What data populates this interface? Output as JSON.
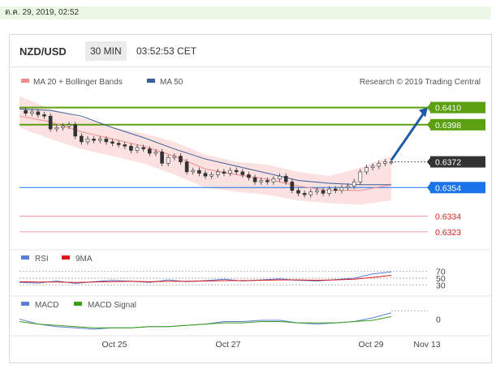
{
  "date_stamp": "ต.ค. 29, 2019, 02:52",
  "header": {
    "pair": "NZD/USD",
    "interval": "30 MIN",
    "clock": "03:52:53 CET"
  },
  "colors": {
    "resistance": "#5aa010",
    "support": "#1a73e8",
    "price_line": "#1e5aa8",
    "ma20": "#f08c8c",
    "ma50": "#3a5f9a",
    "bollinger_fill": "#fbd9d9",
    "rsi": "#5b7fd6",
    "rsi_ma": "#d81a1a",
    "macd": "#5b7fd6",
    "macd_signal": "#3aa018",
    "current_price_box": "#333333"
  },
  "chart_data": [
    {
      "type": "line",
      "panel": "price",
      "legend": [
        "MA 20 + Bollinger Bands",
        "MA 50"
      ],
      "research_credit": "Research © 2019 Trading Central",
      "x_ticks": [
        "Oct 25",
        "Oct 27",
        "Oct 29",
        "Nov 13"
      ],
      "ylim": [
        0.6315,
        0.642
      ],
      "series": [
        {
          "name": "NZD/USD",
          "x": [
            0,
            2,
            4,
            6,
            8,
            10,
            12,
            14,
            16,
            18,
            20,
            22,
            24,
            26,
            28,
            30,
            32,
            34,
            36,
            38,
            40,
            42,
            44,
            46,
            48,
            50,
            52,
            54,
            56,
            58,
            60,
            62,
            64,
            66,
            68,
            70,
            72,
            74,
            76,
            78,
            80,
            82,
            84,
            86,
            88,
            90,
            92,
            94,
            96,
            98,
            100,
            102,
            104,
            106,
            108,
            110,
            112,
            114,
            116,
            118,
            120
          ],
          "values": [
            0.6408,
            0.6406,
            0.6407,
            0.6405,
            0.6404,
            0.6395,
            0.6396,
            0.6397,
            0.6398,
            0.639,
            0.6386,
            0.6388,
            0.6387,
            0.6388,
            0.6386,
            0.6385,
            0.6384,
            0.6383,
            0.638,
            0.6382,
            0.6381,
            0.6378,
            0.6379,
            0.6371,
            0.6375,
            0.6376,
            0.6372,
            0.6365,
            0.6366,
            0.6364,
            0.6362,
            0.6363,
            0.6365,
            0.6364,
            0.6366,
            0.6365,
            0.6363,
            0.6361,
            0.6358,
            0.6359,
            0.6358,
            0.636,
            0.6362,
            0.6358,
            0.6352,
            0.635,
            0.6349,
            0.6351,
            0.6352,
            0.635,
            0.6353,
            0.6352,
            0.6354,
            0.6355,
            0.6358,
            0.6365,
            0.6368,
            0.6369,
            0.6371,
            0.6372,
            0.6372
          ]
        },
        {
          "name": "MA 20",
          "x": [
            0,
            10,
            20,
            30,
            40,
            50,
            60,
            70,
            80,
            90,
            100,
            110,
            120
          ],
          "values": [
            0.6404,
            0.64,
            0.6393,
            0.6388,
            0.6383,
            0.6376,
            0.6367,
            0.6363,
            0.636,
            0.6355,
            0.6352,
            0.6352,
            0.6356
          ]
        },
        {
          "name": "MA 50",
          "x": [
            0,
            10,
            20,
            30,
            40,
            50,
            60,
            70,
            80,
            90,
            100,
            110,
            120
          ],
          "values": [
            0.6409,
            0.6408,
            0.6404,
            0.6396,
            0.6389,
            0.6381,
            0.6374,
            0.6369,
            0.6364,
            0.6359,
            0.6357,
            0.6356,
            0.6356
          ]
        }
      ],
      "bollinger_upper": [
        0.6418,
        0.6409,
        0.6403,
        0.6396,
        0.6392,
        0.6386,
        0.6377,
        0.6372,
        0.637,
        0.6365,
        0.6362,
        0.6368,
        0.6376
      ],
      "bollinger_lower": [
        0.6396,
        0.6388,
        0.6381,
        0.6376,
        0.6371,
        0.6363,
        0.6354,
        0.6351,
        0.6349,
        0.6345,
        0.6343,
        0.6342,
        0.6345
      ],
      "levels": [
        {
          "value": 0.641,
          "label": "0.6410",
          "kind": "resistance"
        },
        {
          "value": 0.6398,
          "label": "0.6398",
          "kind": "resistance"
        },
        {
          "value": 0.6372,
          "label": "0.6372",
          "kind": "current"
        },
        {
          "value": 0.6354,
          "label": "0.6354",
          "kind": "pivot"
        },
        {
          "value": 0.6334,
          "label": "0.6334",
          "kind": "support"
        },
        {
          "value": 0.6323,
          "label": "0.6323",
          "kind": "support"
        }
      ],
      "projection": {
        "from_x": 120,
        "from_value": 0.6372,
        "to_x": 125,
        "to_value": 0.641
      }
    },
    {
      "type": "line",
      "panel": "rsi",
      "legend": [
        "RSI",
        "9MA"
      ],
      "y_ticks": [
        70,
        50,
        30
      ],
      "ylim": [
        20,
        80
      ],
      "series": [
        {
          "name": "RSI",
          "x": [
            0,
            6,
            12,
            18,
            24,
            30,
            36,
            42,
            48,
            54,
            60,
            66,
            72,
            78,
            84,
            90,
            96,
            102,
            108,
            114,
            120
          ],
          "values": [
            38,
            36,
            42,
            35,
            40,
            44,
            41,
            38,
            45,
            40,
            43,
            47,
            42,
            45,
            48,
            44,
            42,
            46,
            50,
            62,
            68
          ]
        },
        {
          "name": "9MA",
          "x": [
            0,
            6,
            12,
            18,
            24,
            30,
            36,
            42,
            48,
            54,
            60,
            66,
            72,
            78,
            84,
            90,
            96,
            102,
            108,
            114,
            120
          ],
          "values": [
            40,
            39,
            39,
            38,
            39,
            40,
            41,
            40,
            41,
            41,
            42,
            43,
            43,
            44,
            45,
            45,
            44,
            45,
            47,
            52,
            58
          ]
        }
      ]
    },
    {
      "type": "line",
      "panel": "macd",
      "legend": [
        "MACD",
        "MACD Signal"
      ],
      "y_ticks": [
        0
      ],
      "ylim": [
        -0.0012,
        0.001
      ],
      "series": [
        {
          "name": "MACD",
          "x": [
            0,
            6,
            12,
            18,
            24,
            30,
            36,
            42,
            48,
            54,
            60,
            66,
            72,
            78,
            84,
            90,
            96,
            102,
            108,
            114,
            120
          ],
          "values": [
            0.0,
            -0.0004,
            -0.0006,
            -0.0007,
            -0.0008,
            -0.0007,
            -0.0007,
            -0.0006,
            -0.0006,
            -0.0005,
            -0.0004,
            -0.0002,
            -0.0002,
            -0.0001,
            -0.0001,
            -0.0003,
            -0.0004,
            -0.0003,
            -0.0002,
            0.0001,
            0.0005
          ]
        },
        {
          "name": "MACD Signal",
          "x": [
            0,
            6,
            12,
            18,
            24,
            30,
            36,
            42,
            48,
            54,
            60,
            66,
            72,
            78,
            84,
            90,
            96,
            102,
            108,
            114,
            120
          ],
          "values": [
            -0.0002,
            -0.0004,
            -0.0005,
            -0.0006,
            -0.0007,
            -0.0007,
            -0.0007,
            -0.0006,
            -0.0006,
            -0.0005,
            -0.0004,
            -0.0003,
            -0.0003,
            -0.0002,
            -0.0002,
            -0.0003,
            -0.0003,
            -0.0003,
            -0.0002,
            -0.0001,
            0.0002
          ]
        }
      ]
    }
  ]
}
